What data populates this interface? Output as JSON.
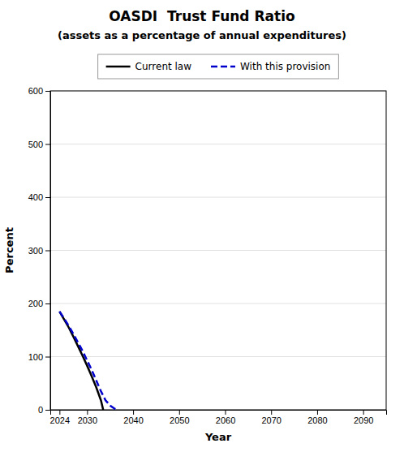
{
  "chart_data": {
    "type": "line",
    "title": "OASDI  Trust Fund Ratio",
    "subtitle": "(assets as a percentage of annual expenditures)",
    "x_label": "Year",
    "y_label": "Percent",
    "xlim": [
      2022,
      2095
    ],
    "ylim": [
      0,
      600
    ],
    "xticks": [
      2024,
      2030,
      2040,
      2050,
      2060,
      2070,
      2080,
      2090
    ],
    "yticks": [
      0,
      100,
      200,
      300,
      400,
      500,
      600
    ],
    "grid": true,
    "legend": "top",
    "series": [
      {
        "name": "Current law",
        "color": "#000000",
        "line_style": "solid",
        "x": [
          2024,
          2025,
          2026,
          2027,
          2028,
          2029,
          2030,
          2031,
          2032,
          2033,
          2033.5
        ],
        "values": [
          185,
          170,
          155,
          138,
          120,
          102,
          83,
          63,
          42,
          18,
          0
        ]
      },
      {
        "name": "With this provision",
        "color": "#0000cc",
        "line_style": "dashed",
        "x": [
          2024,
          2025,
          2026,
          2027,
          2028,
          2029,
          2030,
          2031,
          2032,
          2033,
          2034,
          2035,
          2036,
          2036.5
        ],
        "values": [
          185,
          172,
          158,
          143,
          127,
          111,
          93,
          75,
          55,
          35,
          18,
          8,
          2,
          0
        ]
      }
    ]
  }
}
